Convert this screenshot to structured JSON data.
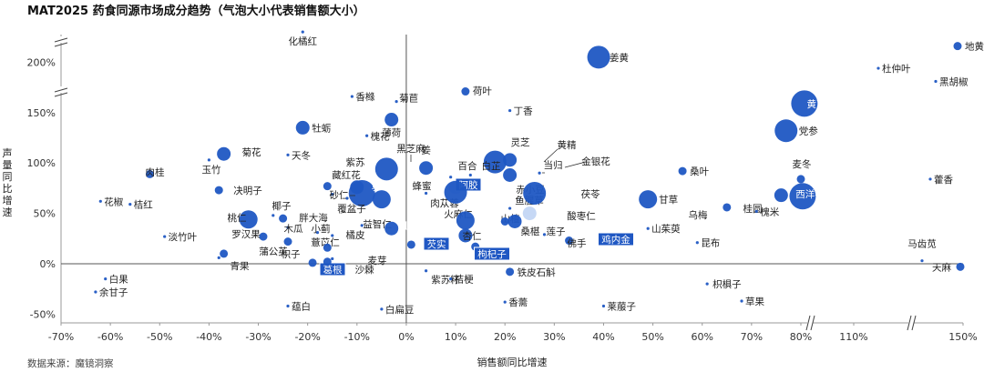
{
  "title": "MAT2025 药食同源市场成分趋势（气泡大小代表销售额大小）",
  "source": "数据来源：魔镜洞察",
  "chart_data": {
    "type": "scatter",
    "title": "MAT2025 药食同源市场成分趋势（气泡大小代表销售额大小）",
    "xlabel": "销售额同比增速",
    "ylabel": "声量同比增速",
    "x_ticks": [
      "-70%",
      "-60%",
      "-50%",
      "-40%",
      "-30%",
      "-20%",
      "-10%",
      "0%",
      "10%",
      "20%",
      "30%",
      "40%",
      "50%",
      "60%",
      "70%",
      "80%",
      "110%",
      "150%"
    ],
    "y_ticks": [
      "-50%",
      "0%",
      "50%",
      "100%",
      "150%",
      "200%"
    ],
    "x_axis_breaks": [
      "between 80% and 110%",
      "between 110% and 150%"
    ],
    "y_axis_break": "above 200%",
    "xlim": [
      -70,
      150
    ],
    "ylim": [
      -50,
      220
    ],
    "series": [
      {
        "name": "化橘红",
        "x": -21,
        "y": 230,
        "size": 1,
        "tone": "dark"
      },
      {
        "name": "姜黄",
        "x": 39,
        "y": 205,
        "size": 5,
        "tone": "dark"
      },
      {
        "name": "黄芪",
        "x": 82,
        "y": 159,
        "size": 6,
        "tone": "dark",
        "highlight": true
      },
      {
        "name": "地黄",
        "x": 148,
        "y": 216,
        "size": 2,
        "tone": "dark"
      },
      {
        "name": "杜仲叶",
        "x": 119,
        "y": 194,
        "size": 1,
        "tone": "dark"
      },
      {
        "name": "黑胡椒",
        "x": 140,
        "y": 181,
        "size": 1,
        "tone": "dark"
      },
      {
        "name": "香橼",
        "x": -11,
        "y": 166,
        "size": 1,
        "tone": "dark"
      },
      {
        "name": "菊苣",
        "x": -2,
        "y": 161,
        "size": 1,
        "tone": "dark"
      },
      {
        "name": "荷叶",
        "x": 12,
        "y": 171,
        "size": 2,
        "tone": "dark"
      },
      {
        "name": "丁香",
        "x": 21,
        "y": 152,
        "size": 1,
        "tone": "dark"
      },
      {
        "name": "薄荷",
        "x": -3,
        "y": 143,
        "size": 3,
        "tone": "dark"
      },
      {
        "name": "牡蛎",
        "x": -21,
        "y": 135,
        "size": 3,
        "tone": "dark"
      },
      {
        "name": "党参",
        "x": 77,
        "y": 132,
        "size": 5,
        "tone": "dark"
      },
      {
        "name": "槐花",
        "x": -8,
        "y": 127,
        "size": 1,
        "tone": "dark"
      },
      {
        "name": "黑芝麻",
        "x": -4,
        "y": 94,
        "size": 5,
        "tone": "dark"
      },
      {
        "name": "菊花",
        "x": -37,
        "y": 109,
        "size": 3,
        "tone": "dark"
      },
      {
        "name": "天冬",
        "x": -24,
        "y": 108,
        "size": 1,
        "tone": "dark"
      },
      {
        "name": "玉竹",
        "x": -40,
        "y": 103,
        "size": 1,
        "tone": "dark"
      },
      {
        "name": "肉桂",
        "x": -52,
        "y": 89,
        "size": 2,
        "tone": "dark"
      },
      {
        "name": "姜",
        "x": 4,
        "y": 95,
        "size": 3,
        "tone": "dark"
      },
      {
        "name": "灵芝",
        "x": 18,
        "y": 101,
        "size": 5,
        "tone": "dark"
      },
      {
        "name": "黄精",
        "x": 21,
        "y": 103,
        "size": 3,
        "tone": "dark"
      },
      {
        "name": "当归",
        "x": 21,
        "y": 88,
        "size": 3,
        "tone": "dark"
      },
      {
        "name": "金银花",
        "x": 27,
        "y": 90,
        "size": 1,
        "tone": "dark"
      },
      {
        "name": "桑叶",
        "x": 56,
        "y": 92,
        "size": 2,
        "tone": "dark"
      },
      {
        "name": "麦冬",
        "x": 80,
        "y": 84,
        "size": 2,
        "tone": "dark"
      },
      {
        "name": "藿香",
        "x": 138,
        "y": 84,
        "size": 1,
        "tone": "dark"
      },
      {
        "name": "紫苏",
        "x": -10,
        "y": 76,
        "size": 3,
        "tone": "dark"
      },
      {
        "name": "藏红花",
        "x": -16,
        "y": 77,
        "size": 2,
        "tone": "dark"
      },
      {
        "name": "百合",
        "x": 9,
        "y": 86,
        "size": 1,
        "tone": "dark"
      },
      {
        "name": "白芷",
        "x": 13,
        "y": 88,
        "size": 1,
        "tone": "dark"
      },
      {
        "name": "枣",
        "x": -9,
        "y": 70,
        "size": 6,
        "tone": "dark",
        "highlight": true
      },
      {
        "name": "蜂蜜",
        "x": -5,
        "y": 64,
        "size": 4,
        "tone": "dark"
      },
      {
        "name": "阿胶",
        "x": 10,
        "y": 76,
        "size": 3,
        "tone": "light",
        "highlight": true
      },
      {
        "name": "决明子",
        "x": -38,
        "y": 73,
        "size": 2,
        "tone": "dark"
      },
      {
        "name": "砂仁",
        "x": -15,
        "y": 69,
        "size": 1,
        "tone": "dark"
      },
      {
        "name": "覆盆子",
        "x": -12,
        "y": 65,
        "size": 1,
        "tone": "dark"
      },
      {
        "name": "肉苁蓉",
        "x": 4,
        "y": 70,
        "size": 1,
        "tone": "dark"
      },
      {
        "name": "火麻仁",
        "x": 10,
        "y": 71,
        "size": 5,
        "tone": "dark"
      },
      {
        "name": "赤小豆",
        "x": 23,
        "y": 64,
        "size": 1,
        "tone": "light"
      },
      {
        "name": "鱼腥草",
        "x": 21,
        "y": 55,
        "size": 1,
        "tone": "dark"
      },
      {
        "name": "茯苓",
        "x": 26,
        "y": 70,
        "size": 5,
        "tone": "dark"
      },
      {
        "name": "甘草",
        "x": 49,
        "y": 64,
        "size": 4,
        "tone": "dark"
      },
      {
        "name": "西洋参",
        "x": 81,
        "y": 67,
        "size": 6,
        "tone": "dark",
        "highlight": true
      },
      {
        "name": "桂圆",
        "x": 76,
        "y": 68,
        "size": 3,
        "tone": "dark"
      },
      {
        "name": "槐米",
        "x": 71,
        "y": 52,
        "size": 1,
        "tone": "dark"
      },
      {
        "name": "乌梅",
        "x": 65,
        "y": 56,
        "size": 2,
        "tone": "dark"
      },
      {
        "name": "花椒",
        "x": -62,
        "y": 62,
        "size": 1,
        "tone": "dark"
      },
      {
        "name": "桔红",
        "x": -56,
        "y": 59,
        "size": 1,
        "tone": "dark"
      },
      {
        "name": "椰子",
        "x": -27,
        "y": 48,
        "size": 1,
        "tone": "dark"
      },
      {
        "name": "胖大海",
        "x": -25,
        "y": 45,
        "size": 2,
        "tone": "dark"
      },
      {
        "name": "桃仁",
        "x": -32,
        "y": 44,
        "size": 4,
        "tone": "dark"
      },
      {
        "name": "酸枣仁",
        "x": 25,
        "y": 50,
        "size": 3,
        "tone": "light"
      },
      {
        "name": "山楂",
        "x": 12,
        "y": 43,
        "size": 4,
        "tone": "dark"
      },
      {
        "name": "桑椹",
        "x": 20,
        "y": 42,
        "size": 2,
        "tone": "dark"
      },
      {
        "name": "莲子",
        "x": 22,
        "y": 42,
        "size": 3,
        "tone": "dark"
      },
      {
        "name": "山茱萸",
        "x": 49,
        "y": 35,
        "size": 1,
        "tone": "dark"
      },
      {
        "name": "益智仁",
        "x": -9,
        "y": 38,
        "size": 1,
        "tone": "dark"
      },
      {
        "name": "山药",
        "x": -3,
        "y": 35,
        "size": 3,
        "tone": "dark",
        "highlight": true
      },
      {
        "name": "木瓜",
        "x": -24,
        "y": 36,
        "size": 1,
        "tone": "dark"
      },
      {
        "name": "小蓟",
        "x": -18,
        "y": 31,
        "size": 1,
        "tone": "dark"
      },
      {
        "name": "罗汉果",
        "x": -29,
        "y": 27,
        "size": 2,
        "tone": "dark"
      },
      {
        "name": "淡竹叶",
        "x": -49,
        "y": 27,
        "size": 1,
        "tone": "dark"
      },
      {
        "name": "薏苡仁",
        "x": -24,
        "y": 22,
        "size": 2,
        "tone": "dark"
      },
      {
        "name": "橘皮",
        "x": -15,
        "y": 28,
        "size": 1,
        "tone": "dark"
      },
      {
        "name": "杏仁",
        "x": 12,
        "y": 28,
        "size": 3,
        "tone": "dark"
      },
      {
        "name": "芡实",
        "x": 1,
        "y": 19,
        "size": 2,
        "tone": "dark",
        "highlight": true
      },
      {
        "name": "枸杞子",
        "x": 14,
        "y": 17,
        "size": 2,
        "tone": "dark",
        "highlight": true
      },
      {
        "name": "鸡内金",
        "x": 33,
        "y": 23,
        "size": 2,
        "tone": "dark",
        "highlight": true
      },
      {
        "name": "佛手",
        "x": 28,
        "y": 29,
        "size": 1,
        "tone": "dark"
      },
      {
        "name": "昆布",
        "x": 59,
        "y": 21,
        "size": 1,
        "tone": "dark"
      },
      {
        "name": "蒲公英",
        "x": -37,
        "y": 10,
        "size": 2,
        "tone": "dark"
      },
      {
        "name": "枳子",
        "x": -16,
        "y": 16,
        "size": 2,
        "tone": "dark"
      },
      {
        "name": "麦芽",
        "x": -15,
        "y": 5,
        "size": 1,
        "tone": "dark"
      },
      {
        "name": "青果",
        "x": -38,
        "y": 6,
        "size": 1,
        "tone": "dark"
      },
      {
        "name": "葛根",
        "x": -19,
        "y": 1,
        "size": 2,
        "tone": "dark",
        "highlight": true
      },
      {
        "name": "沙棘",
        "x": -16,
        "y": 2,
        "size": 2,
        "tone": "dark"
      },
      {
        "name": "马齿苋",
        "x": 135,
        "y": 3,
        "size": 1,
        "tone": "dark"
      },
      {
        "name": "天麻",
        "x": 149,
        "y": -3,
        "size": 2,
        "tone": "dark"
      },
      {
        "name": "白果",
        "x": -61,
        "y": -15,
        "size": 1,
        "tone": "dark"
      },
      {
        "name": "余甘子",
        "x": -63,
        "y": -28,
        "size": 1,
        "tone": "dark"
      },
      {
        "name": "紫苏籽",
        "x": 4,
        "y": -7,
        "size": 1,
        "tone": "dark"
      },
      {
        "name": "桔梗",
        "x": 9,
        "y": -15,
        "size": 1,
        "tone": "dark"
      },
      {
        "name": "铁皮石斛",
        "x": 21,
        "y": -8,
        "size": 2,
        "tone": "dark"
      },
      {
        "name": "枳椇子",
        "x": 61,
        "y": -20,
        "size": 1,
        "tone": "dark"
      },
      {
        "name": "草果",
        "x": 68,
        "y": -37,
        "size": 1,
        "tone": "dark"
      },
      {
        "name": "蕴白",
        "x": -24,
        "y": -42,
        "size": 1,
        "tone": "dark"
      },
      {
        "name": "白扁豆",
        "x": -5,
        "y": -45,
        "size": 1,
        "tone": "dark"
      },
      {
        "name": "香薷",
        "x": 20,
        "y": -38,
        "size": 1,
        "tone": "dark"
      },
      {
        "name": "莱菔子",
        "x": 40,
        "y": -42,
        "size": 1,
        "tone": "dark"
      }
    ]
  }
}
